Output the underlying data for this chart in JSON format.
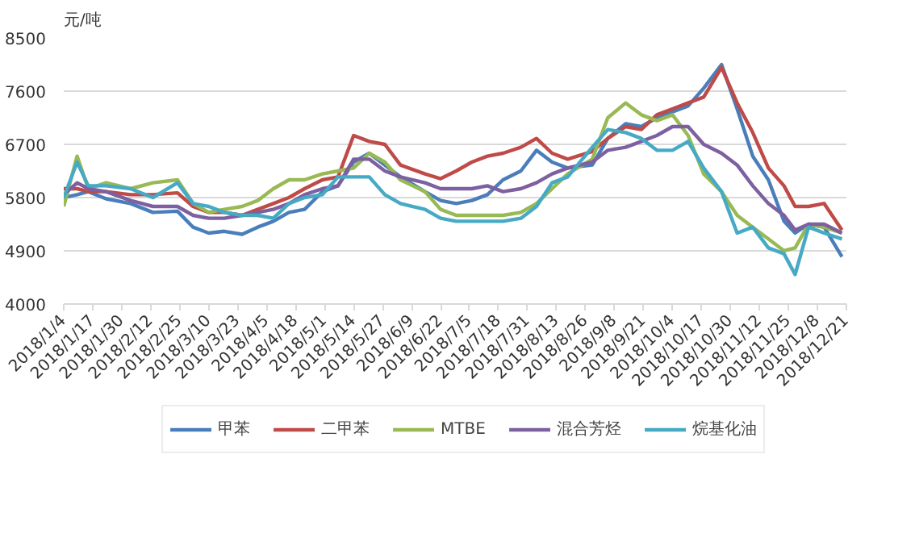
{
  "chart_data": {
    "type": "line",
    "ylabel": "元/吨",
    "x": [
      "2018-01-04",
      "2018-01-10",
      "2018-01-15",
      "2018-01-23",
      "2018-02-03",
      "2018-02-13",
      "2018-02-24",
      "2018-03-03",
      "2018-03-10",
      "2018-03-17",
      "2018-03-25",
      "2018-04-01",
      "2018-04-08",
      "2018-04-15",
      "2018-04-22",
      "2018-04-30",
      "2018-05-07",
      "2018-05-14",
      "2018-05-21",
      "2018-05-28",
      "2018-06-04",
      "2018-06-15",
      "2018-06-22",
      "2018-06-29",
      "2018-07-06",
      "2018-07-13",
      "2018-07-20",
      "2018-07-28",
      "2018-08-04",
      "2018-08-11",
      "2018-08-18",
      "2018-08-29",
      "2018-09-05",
      "2018-09-13",
      "2018-09-20",
      "2018-09-27",
      "2018-10-04",
      "2018-10-11",
      "2018-10-18",
      "2018-10-26",
      "2018-11-02",
      "2018-11-09",
      "2018-11-16",
      "2018-11-23",
      "2018-11-28",
      "2018-12-04",
      "2018-12-11",
      "2018-12-19"
    ],
    "series": [
      {
        "name": "甲苯",
        "color": "#4a7ebb",
        "values": [
          5800,
          5850,
          5900,
          5780,
          5700,
          5550,
          5570,
          5300,
          5200,
          5230,
          5180,
          5300,
          5400,
          5550,
          5600,
          5900,
          6000,
          6400,
          6550,
          6350,
          6150,
          5900,
          5750,
          5700,
          5750,
          5850,
          6100,
          6250,
          6600,
          6400,
          6300,
          6350,
          6800,
          7050,
          7000,
          7150,
          7250,
          7350,
          7650,
          8050,
          7300,
          6500,
          6100,
          5400,
          5200,
          5350,
          5300,
          4800
        ]
      },
      {
        "name": "二甲苯",
        "color": "#be4b48",
        "values": [
          5950,
          5950,
          5900,
          5900,
          5850,
          5850,
          5880,
          5650,
          5550,
          5550,
          5500,
          5600,
          5700,
          5800,
          5950,
          6100,
          6150,
          6850,
          6750,
          6700,
          6350,
          6200,
          6120,
          6250,
          6400,
          6500,
          6550,
          6650,
          6800,
          6550,
          6450,
          6580,
          6800,
          7000,
          6950,
          7200,
          7300,
          7400,
          7500,
          8000,
          7400,
          6900,
          6300,
          6000,
          5650,
          5650,
          5700,
          5250
        ]
      },
      {
        "name": "MTBE",
        "color": "#98b954",
        "values": [
          5650,
          6500,
          5950,
          6050,
          5950,
          6050,
          6100,
          5700,
          5550,
          5600,
          5650,
          5750,
          5950,
          6100,
          6100,
          6200,
          6250,
          6300,
          6550,
          6400,
          6100,
          5900,
          5600,
          5500,
          5500,
          5500,
          5500,
          5550,
          5700,
          5950,
          6200,
          6450,
          7150,
          7400,
          7200,
          7100,
          7200,
          6850,
          6200,
          5900,
          5500,
          5300,
          5100,
          4900,
          4950,
          5350,
          5300,
          5200
        ]
      },
      {
        "name": "混合芳烃",
        "color": "#7d60a0",
        "values": [
          5850,
          6050,
          5950,
          5900,
          5750,
          5650,
          5650,
          5500,
          5450,
          5450,
          5500,
          5550,
          5600,
          5700,
          5850,
          5950,
          6000,
          6450,
          6450,
          6250,
          6150,
          6050,
          5950,
          5950,
          5950,
          6000,
          5900,
          5950,
          6050,
          6200,
          6300,
          6400,
          6600,
          6650,
          6750,
          6850,
          7000,
          7000,
          6700,
          6550,
          6350,
          6000,
          5700,
          5500,
          5250,
          5350,
          5350,
          5200
        ]
      },
      {
        "name": "烷基化油",
        "color": "#46aac5",
        "values": [
          5800,
          6400,
          6000,
          6000,
          5950,
          5800,
          6050,
          5700,
          5650,
          5550,
          5500,
          5500,
          5450,
          5700,
          5800,
          5850,
          6150,
          6150,
          6150,
          5850,
          5700,
          5600,
          5450,
          5400,
          5400,
          5400,
          5400,
          5450,
          5650,
          6050,
          6150,
          6650,
          6950,
          6900,
          6800,
          6600,
          6600,
          6750,
          6300,
          5900,
          5200,
          5300,
          4950,
          4850,
          4500,
          5300,
          5200,
          5100
        ]
      }
    ],
    "xlim": [
      "2018-01-04",
      "2018-12-21"
    ],
    "xticks": [
      {
        "value": "2018-01-04",
        "label": "2018/1/4"
      },
      {
        "value": "2018-01-17",
        "label": "2018/1/17"
      },
      {
        "value": "2018-01-30",
        "label": "2018/1/30"
      },
      {
        "value": "2018-02-12",
        "label": "2018/2/12"
      },
      {
        "value": "2018-02-25",
        "label": "2018/2/25"
      },
      {
        "value": "2018-03-10",
        "label": "2018/3/10"
      },
      {
        "value": "2018-03-23",
        "label": "2018/3/23"
      },
      {
        "value": "2018-04-05",
        "label": "2018/4/5"
      },
      {
        "value": "2018-04-18",
        "label": "2018/4/18"
      },
      {
        "value": "2018-05-01",
        "label": "2018/5/1"
      },
      {
        "value": "2018-05-14",
        "label": "2018/5/14"
      },
      {
        "value": "2018-05-27",
        "label": "2018/5/27"
      },
      {
        "value": "2018-06-09",
        "label": "2018/6/9"
      },
      {
        "value": "2018-06-22",
        "label": "2018/6/22"
      },
      {
        "value": "2018-07-05",
        "label": "2018/7/5"
      },
      {
        "value": "2018-07-18",
        "label": "2018/7/18"
      },
      {
        "value": "2018-07-31",
        "label": "2018/7/31"
      },
      {
        "value": "2018-08-13",
        "label": "2018/8/13"
      },
      {
        "value": "2018-08-26",
        "label": "2018/8/26"
      },
      {
        "value": "2018-09-08",
        "label": "2018/9/8"
      },
      {
        "value": "2018-09-21",
        "label": "2018/9/21"
      },
      {
        "value": "2018-10-04",
        "label": "2018/10/4"
      },
      {
        "value": "2018-10-17",
        "label": "2018/10/17"
      },
      {
        "value": "2018-10-30",
        "label": "2018/10/30"
      },
      {
        "value": "2018-11-12",
        "label": "2018/11/12"
      },
      {
        "value": "2018-11-25",
        "label": "2018/11/25"
      },
      {
        "value": "2018-12-08",
        "label": "2018/12/8"
      },
      {
        "value": "2018-12-21",
        "label": "2018/12/21"
      }
    ],
    "ylim": [
      4000,
      8500
    ],
    "yticks": [
      4000,
      4900,
      5800,
      6700,
      7600,
      8500
    ],
    "grid": "y",
    "legend": "bottom",
    "line_style": "solid",
    "marker": "none"
  }
}
